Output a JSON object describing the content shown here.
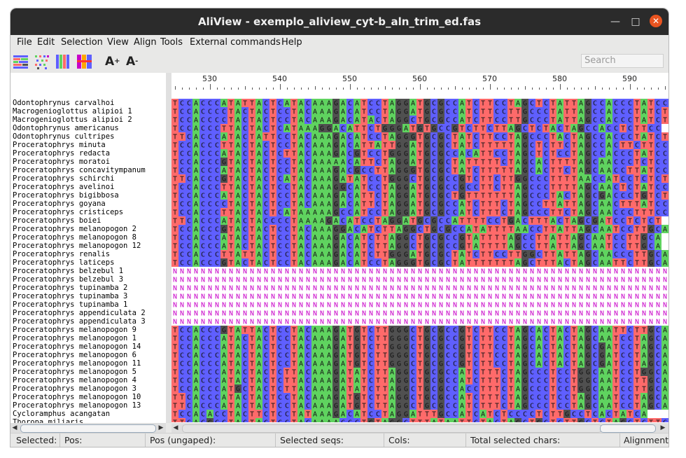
{
  "window": {
    "title": "AliView - exemplo_aliview_cyt-b_aln_trim_ed.fas"
  },
  "menu": [
    "File",
    "Edit",
    "Selection",
    "View",
    "Align",
    "Tools",
    "External commands",
    "Help"
  ],
  "toolbar": {
    "icons": [
      "nucleotide-color-icon",
      "consensus-color-icon",
      "translate-color-icon",
      "codon-color-icon",
      "font-increase-icon",
      "font-decrease-icon"
    ],
    "search_placeholder": "Search"
  },
  "ruler": {
    "labels": [
      "530",
      "540",
      "550",
      "560",
      "570",
      "580",
      "590"
    ]
  },
  "colors": {
    "A": "#5fd35f",
    "C": "#5f5fff",
    "G": "#505050",
    "T": "#ff6a6a",
    "N": "#ffffff",
    "N_text": "#c800c8"
  },
  "sequences": [
    {
      "name": "Odontophrynus carvalhoi",
      "seq": "TCCACCCATATTACTCATACAAAGACATCCTAGGATGCGCCATCTTCCTAGCTCTATTAGCCACCCTATCC"
    },
    {
      "name": "Macrogenioglottus alipioi 1",
      "seq": "TCCACCCCTACTACTCCTACAAAGACATCCTAGGATGCGCCATCTTCCTTGCCCTATTAGCCACCCTATCT"
    },
    {
      "name": "Macrogenioglottus alipioi 2",
      "seq": "TCCACCCCTACTACTCCTACAAAGACATACTAGGCTGCGCCATCTTCCTTGCCCTATTAGCCACCCTATCT"
    },
    {
      "name": "Odontophrynus americanus",
      "seq": "TCCACCCTTACTACTCATAAAGGACATTCTGGGATGTGCCGTCTTCTTAGCTCTACTAGCCACCTCTTCC"
    },
    {
      "name": "Odontophrynus cultripes",
      "seq": "TTCACCCATACTATTCCTACAAAGACATCCTAGGGTGCGCTATCTTCCTAGCCCTACTAGCCACCCTATCT"
    },
    {
      "name": "Proceratophrys minuta",
      "seq": "TCCACCCTTACTACTCCTACAAAGACATTATTGGATGCGCTATCTTTTTAGCTCTTCTAGCCACTTCTTCC"
    },
    {
      "name": "Proceratophrys redacta",
      "seq": "TCCACCCATACTACTCTTACAAAGACGTCCTGGGATGCGCCACATTCCTAGCTCTCCTAGCCACCCTATCC"
    },
    {
      "name": "Proceratophrys moratoi",
      "seq": "TCCACCCGTACTACTCCTACAAAAACATTCTAGGATGCGCTATTTTTCTAGCACTTTTAGCAACCCTCTCC"
    },
    {
      "name": "Proceratophrys concavitympanum",
      "seq": "TCCACCCATACTACTCCTACAAAGACGCCTTAGGGTGCGCTATCTTTTTAGCACTTCTAGCAACCTTATCC"
    },
    {
      "name": "Proceratophrys schirchi",
      "seq": "TTCACCCGTACTACTCATACAAAGATATCCTGGGCTGCGCCGTCTTCTTGGCCCTTTTAACCATCCTCTCT"
    },
    {
      "name": "Proceratophrys avelinoi",
      "seq": "TCCACCCTTACTACTCCTACAAAGGCATCCTAGGATGCGCCGCCTTCTTAGCCCTTTTAGCAACTCTATCC"
    },
    {
      "name": "Proceratophrys bigibbosa",
      "seq": "TCCACCCATACTACTCCTACAAAGACATTCTAGGATGCGCTGTTTTTTTAGCCCTACTAGCGACCCTGTCT"
    },
    {
      "name": "Proceratophrys goyana",
      "seq": "TCCACCCCTACTACTCCTACAAAGACATTCTAGGATGCGCCATCTTTCTAGCCTTATTAGCAACTTTATCC"
    },
    {
      "name": "Proceratophrys cristiceps",
      "seq": "TCCACCCTTACTACTCATAAAAAGCCATCCTAGGATGCGCCATCTTTCTAGCCCTTCTAGCAACCCTTTCC"
    },
    {
      "name": "Proceratophrys boiei",
      "seq": "TTCACCCATACTACCCCTAAAAGACATCCTAGGATGCGCCATTTTCCTGACTTTACTAGCGATCCTCTCT"
    },
    {
      "name": "Proceratophrys melanopogon 2",
      "seq": "TCCACCCGTACTACTCCTACAAAGGACATCTTAGGCTGCGCCATATTTTAACCTTATTAGCAATCCTTGCA"
    },
    {
      "name": "Proceratophrys melanopogon 8",
      "seq": "TCCACCCATACTACTCCTACAAAGACATCTTAGGCTGCGCCGTATTTTAGCCTTATTAGCAATCCTTGCA"
    },
    {
      "name": "Proceratophrys melanopogon 12",
      "seq": "TCCACCCATACTACTCCTACAAAGACATCTTAGGCTGCGCCGTATTTTAGCCTTATTAGCAATCCTTGCA"
    },
    {
      "name": "Proceratophrys renalis",
      "seq": "TCCACCCTTATTACTCCTACAAAGACATCTTGGGATGCGCTATCTTCCTTGGCTTATTAGCAACCCTTGCA"
    },
    {
      "name": "Proceratophrys laticeps",
      "seq": "TCCACCCGTACTACTCCTACAAAGACATCCTAGGGTGCGCTATTTTTTTAGCTTTACTAGCAATTCTTGCA"
    },
    {
      "name": "Proceratophrys belzebul 1",
      "seq": "NNNNNNNNNNNNNNNNNNNNNNNNNNNNNNNNNNNNNNNNNNNNNNNNNNNNNNNNNNNNNNNNNNNNNNN"
    },
    {
      "name": "Proceratophrys belzebul 3",
      "seq": "NNNNNNNNNNNNNNNNNNNNNNNNNNNNNNNNNNNNNNNNNNNNNNNNNNNNNNNNNNNNNNNNNNNNNNN"
    },
    {
      "name": "Proceratophrys tupinamba 2",
      "seq": "NNNNNNNNNNNNNNNNNNNNNNNNNNNNNNNNNNNNNNNNNNNNNNNNNNNNNNNNNNNNNNNNNNNNNNN"
    },
    {
      "name": "Proceratophrys tupinamba 3",
      "seq": "NNNNNNNNNNNNNNNNNNNNNNNNNNNNNNNNNNNNNNNNNNNNNNNNNNNNNNNNNNNNNNNNNNNNNNN"
    },
    {
      "name": "Proceratophrys tupinamba 1",
      "seq": "NNNNNNNNNNNNNNNNNNNNNNNNNNNNNNNNNNNNNNNNNNNNNNNNNNNNNNNNNNNNNNNNNNNNNNN"
    },
    {
      "name": "Proceratophrys appendiculata 2",
      "seq": "NNNNNNNNNNNNNNNNNNNNNNNNNNNNNNNNNNNNNNNNNNNNNNNNNNNNNNNNNNNNNNNNNNNNNNN"
    },
    {
      "name": "Proceratophrys appendiculata 3",
      "seq": "NNNNNNNNNNNNNNNNNNNNNNNNNNNNNNNNNNNNNNNNNNNNNNNNNNNNNNNNNNNNNNNNNNNNNNN"
    },
    {
      "name": "Proceratophrys melanopogon 9",
      "seq": "TCCACCCGTATTACTCCTACAAAGATGTCTTGGGCTGCGCCGTCTTCCTAGCACTACTAGCAATTCTTGCA"
    },
    {
      "name": "Proceratophrys melanopogon 1",
      "seq": "TCCACCCATACTACTCCTACAAAGATGTCTTGGGCTGCGCCGTCTTCCTAGCACTACTAGCAATCCTAGCA"
    },
    {
      "name": "Proceratophrys melanopogon 14",
      "seq": "TCCACCCATACTACTCCTACAAAGATGTCTTGGGCTGCGCCGTCTTCCTAGCACTACTAGCGATCCTAGCA"
    },
    {
      "name": "Proceratophrys melanopogon 6",
      "seq": "TCCACCCATACTACTCCTACAAAGATGTCTTGGGCTGCGCCGTCTTCCTAGCACTACTAGCGATCCTAGCA"
    },
    {
      "name": "Proceratophrys melanopogon 11",
      "seq": "TCCACCCATACTACTCCTACAAAGATGTCTTGGGCTGCGCCGTCTTCCTAGCACTACTAGCGATCCTAGCA"
    },
    {
      "name": "Proceratophrys melanopogon 5",
      "seq": "TCCACCCATACTACTCTTACAAAGATATCTTAGGCTGCGCCATCTTTCTAGCCCTCCTGGCAATCCTGGCA"
    },
    {
      "name": "Proceratophrys melanopogon 4",
      "seq": "TCCACCCATACTACTCTTACAAAGATATCTTAGGCTGCGCCATCTTTCTAGCCCTCCTGGCAATCCTTGCA"
    },
    {
      "name": "Proceratophrys melanopogon 3",
      "seq": "TCCACCCATGCTACTCTTACAAAGATATCTTAGGCTGCGCCACCTTTCTAGCCCTCCTGGCAATCCTTGCA"
    },
    {
      "name": "Proceratophrys melanopogon 10",
      "seq": "TTCACCCATACTACTCCTACAAAGATGTCTTAGGCTGCGCCATCTTTCTAGCCCTCCTAGCAATCCTAGCA"
    },
    {
      "name": "Proceratophrys melanopogon 13",
      "seq": "TTCACCCATACTACTCCTACAAAGATGTCTTAGGCTGCGCCATCTTTCTAGCCCTCCTAGCAATCCTAGCA"
    },
    {
      "name": "Cycloramphus acangatan",
      "seq": "TCCACACCTACTTCTCCTATAAAGACATCCTAGGATTTGCCATCATCTCCCCTCTTGCCTCACTATCA"
    },
    {
      "name": "Thoropa miliaris",
      "seq": "TTCACGCCTACTACTCCTACAAAACCCTGTAGGCTTTATAATTCTACTAGCTGCTCTTGCTCTAGCTCTTCT"
    }
  ],
  "status": {
    "selected": "Selected:",
    "pos": "Pos:",
    "pos_ungaped": "Pos (ungaped):",
    "selected_seqs": "Selected seqs:",
    "cols": "Cols:",
    "total_selected_chars": "Total selected chars:",
    "alignment": "Alignment:"
  }
}
